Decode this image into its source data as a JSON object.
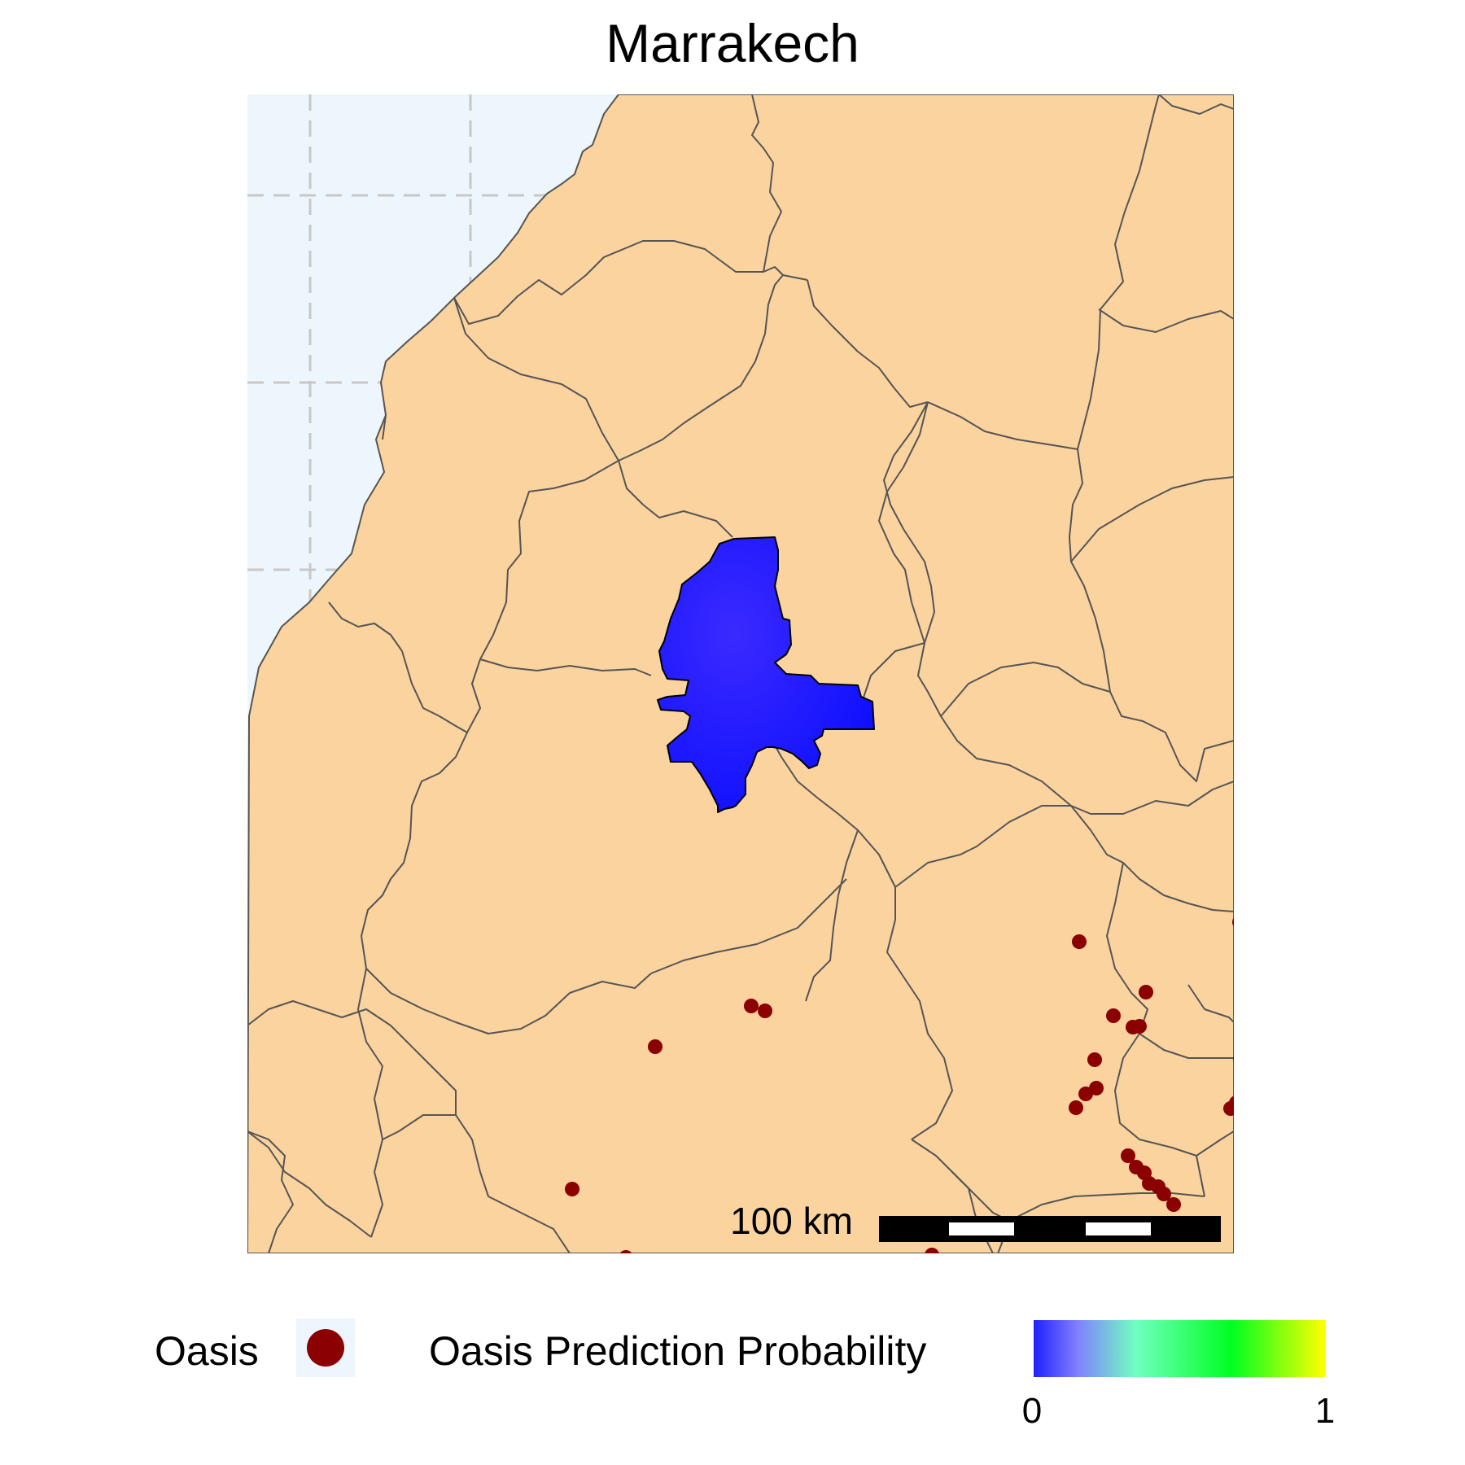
{
  "title": "Marrakech",
  "map": {
    "colors": {
      "sea": "#eef6fd",
      "land": "#fad39f",
      "border": "#555555",
      "graticule": "#c8c8c8",
      "prediction_fill": "#2a1bff",
      "oasis_point": "#8b0000"
    },
    "highlighted_region": "Marrakech",
    "scale_bar": {
      "label": "100 km"
    }
  },
  "legend": {
    "oasis": {
      "label": "Oasis",
      "icon": "dark-red-dot"
    },
    "probability": {
      "label": "Oasis Prediction Probability",
      "min_label": "0",
      "max_label": "1",
      "gradient": [
        "#2020ff",
        "#8080ff",
        "#70ffc0",
        "#00ff20",
        "#ffff00"
      ]
    }
  }
}
